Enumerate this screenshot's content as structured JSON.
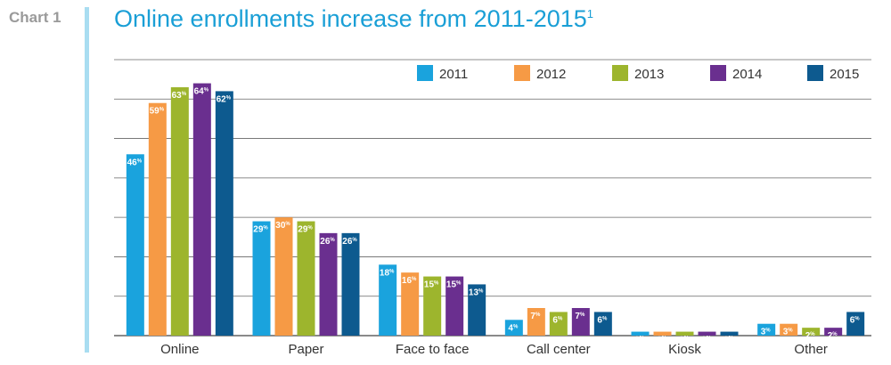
{
  "header": {
    "chart_label": "Chart 1",
    "title": "Online enrollments increase from 2011-2015",
    "title_footnote": "1"
  },
  "colors": {
    "accent": "#a9ddf1",
    "title": "#1a9fd6",
    "gridline": "#666666"
  },
  "chart_data": {
    "type": "bar",
    "title": "Online enrollments increase from 2011-2015",
    "categories": [
      "Online",
      "Paper",
      "Face to face",
      "Call center",
      "Kiosk",
      "Other"
    ],
    "series": [
      {
        "name": "2011",
        "color": "#1aa3dd",
        "values": [
          46,
          29,
          18,
          4,
          1,
          3
        ]
      },
      {
        "name": "2012",
        "color": "#f69a45",
        "values": [
          59,
          30,
          16,
          7,
          1,
          3
        ]
      },
      {
        "name": "2013",
        "color": "#9db52d",
        "values": [
          63,
          29,
          15,
          6,
          1,
          2
        ]
      },
      {
        "name": "2014",
        "color": "#6a2f8f",
        "values": [
          64,
          26,
          15,
          7,
          1,
          2
        ]
      },
      {
        "name": "2015",
        "color": "#0d5a8f",
        "values": [
          62,
          26,
          13,
          6,
          1,
          6
        ]
      }
    ],
    "value_suffix": "%",
    "ylim": [
      0,
      70
    ],
    "grid": true,
    "legend_position": "top-right"
  }
}
